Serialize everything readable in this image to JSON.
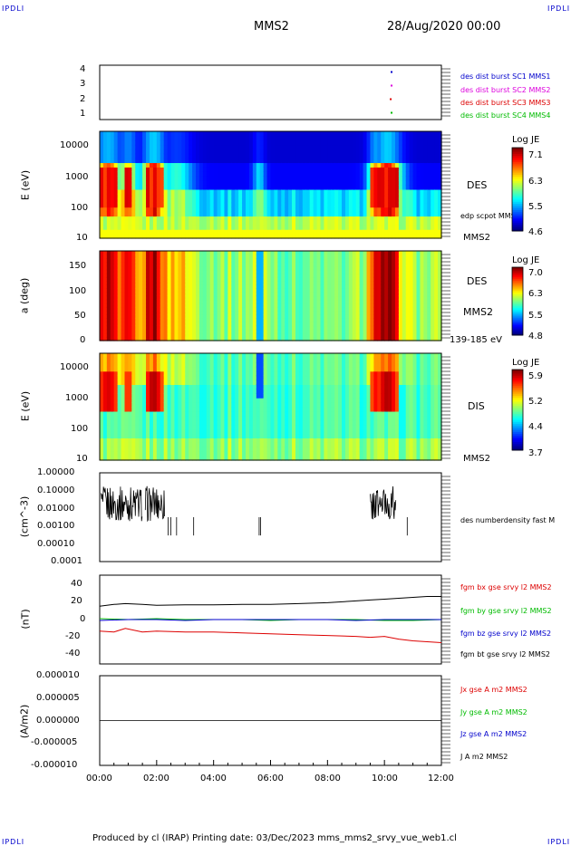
{
  "corners": {
    "tl": "IPDLI",
    "tr": "IPDLI",
    "bl": "IPDLI",
    "br": "IPDLI"
  },
  "header": {
    "spacecraft": "MMS2",
    "date": "28/Aug/2020 00:00"
  },
  "footer": {
    "text": "Produced by cl (IRAP)   Printing date: 03/Dec/2023   mms_mms2_srvy_vue_web1.cl"
  },
  "colors": {
    "blue": "#0000cc",
    "magenta": "#dd00dd",
    "red": "#dd0000",
    "green": "#00bb00",
    "black": "#000000"
  },
  "chart_data": [
    {
      "type": "scatter",
      "panel": "burst",
      "ylim": [
        0.5,
        4.5
      ],
      "yticks": [
        "1",
        "2",
        "3",
        "4"
      ],
      "legend": [
        {
          "label": "des dist burst SC1 MMS1",
          "color": "#0000cc"
        },
        {
          "label": "des dist burst SC2 MMS2",
          "color": "#dd00dd"
        },
        {
          "label": "des dist burst SC3 MMS3",
          "color": "#dd0000"
        },
        {
          "label": "des dist burst SC4 MMS4",
          "color": "#00bb00"
        }
      ],
      "series": [
        {
          "name": "des dist burst SC1 MMS1",
          "x": [
            10.25
          ],
          "y": [
            4
          ]
        },
        {
          "name": "des dist burst SC2 MMS2",
          "x": [
            10.25
          ],
          "y": [
            3
          ]
        },
        {
          "name": "des dist burst SC3 MMS3",
          "x": [
            10.22
          ],
          "y": [
            2
          ]
        },
        {
          "name": "des dist burst SC4 MMS4",
          "x": [
            10.25
          ],
          "y": [
            1
          ]
        }
      ]
    },
    {
      "type": "heatmap",
      "panel": "des-energy",
      "ylabel": "E (eV)",
      "yscale": "log",
      "ylim": [
        10,
        30000
      ],
      "yticks": [
        "10",
        "100",
        "1000",
        "10000"
      ],
      "label": "DES",
      "sublabel": "MMS2",
      "overlay": "edp scpot MMS2",
      "colorbar": {
        "title": "Log JE",
        "ticks": [
          "7.1",
          "6.3",
          "5.5",
          "4.6"
        ]
      }
    },
    {
      "type": "heatmap",
      "panel": "des-pitch",
      "ylabel": "a (deg)",
      "ylim": [
        0,
        180
      ],
      "yticks": [
        "0",
        "50",
        "100",
        "150"
      ],
      "label": "DES",
      "sublabel": "MMS2",
      "energy_range": "139-185 eV",
      "colorbar": {
        "title": "Log JE",
        "ticks": [
          "7.0",
          "6.3",
          "5.5",
          "4.8"
        ]
      }
    },
    {
      "type": "heatmap",
      "panel": "dis-energy",
      "ylabel": "E (eV)",
      "yscale": "log",
      "ylim": [
        10,
        30000
      ],
      "yticks": [
        "10",
        "100",
        "1000",
        "10000"
      ],
      "label": "DIS",
      "sublabel": "MMS2",
      "colorbar": {
        "title": "Log JE",
        "ticks": [
          "5.9",
          "5.2",
          "4.4",
          "3.7"
        ]
      }
    },
    {
      "type": "line",
      "panel": "density",
      "ylabel": "(cm^-3)",
      "yscale": "log",
      "ylim": [
        0.0001,
        1.0
      ],
      "yticks": [
        "0.00010",
        "0.00100",
        "0.01000",
        "0.10000",
        "1.00000"
      ],
      "yticks_ext": [
        "0.0001",
        "0.0010",
        "0.0100",
        "0.1000",
        "1.0000"
      ],
      "legend": [
        {
          "label": "des numberdensity fast M",
          "color": "#000000"
        }
      ]
    },
    {
      "type": "line",
      "panel": "fgm",
      "ylabel": "(nT)",
      "ylim": [
        -50,
        50
      ],
      "yticks": [
        "-40",
        "-20",
        "0",
        "20",
        "40"
      ],
      "legend": [
        {
          "label": "fgm bx gse srvy l2 MMS2",
          "color": "#dd0000"
        },
        {
          "label": "fgm by gse srvy l2 MMS2",
          "color": "#00bb00"
        },
        {
          "label": "fgm bz gse srvy l2 MMS2",
          "color": "#0000cc"
        },
        {
          "label": "fgm bt gse srvy l2 MMS2",
          "color": "#000000"
        }
      ],
      "series": [
        {
          "name": "fgm bt gse srvy l2 MMS2",
          "x": [
            0,
            0.5,
            0.9,
            1.5,
            2,
            3,
            4,
            5,
            6,
            7,
            8,
            9,
            9.5,
            10,
            10.5,
            11,
            11.5,
            12
          ],
          "y": [
            15,
            17,
            18,
            17,
            16,
            16.5,
            16.5,
            17,
            17,
            18,
            19,
            21,
            22,
            23,
            24,
            25,
            26,
            26
          ]
        },
        {
          "name": "fgm bx gse srvy l2 MMS2",
          "x": [
            0,
            0.5,
            0.9,
            1.5,
            2,
            3,
            4,
            5,
            6,
            7,
            8,
            9,
            9.5,
            10,
            10.5,
            11,
            11.5,
            12
          ],
          "y": [
            -13,
            -14,
            -10,
            -14,
            -13,
            -14,
            -14,
            -15,
            -16,
            -17,
            -18,
            -19,
            -20,
            -19,
            -22,
            -24,
            -25,
            -26
          ]
        },
        {
          "name": "fgm by gse srvy l2 MMS2",
          "x": [
            0,
            1,
            2,
            3,
            4,
            5,
            6,
            7,
            8,
            9,
            10,
            11,
            12
          ],
          "y": [
            1,
            0,
            1,
            0,
            0,
            0,
            -1,
            0,
            0,
            0,
            -1,
            -1,
            0
          ]
        },
        {
          "name": "fgm bz gse srvy l2 MMS2",
          "x": [
            0,
            1,
            2,
            3,
            4,
            5,
            6,
            7,
            8,
            9,
            10,
            11,
            12
          ],
          "y": [
            -1,
            0,
            0,
            -1,
            0,
            0,
            0,
            0,
            0,
            -1,
            0,
            0,
            0
          ]
        }
      ]
    },
    {
      "type": "line",
      "panel": "current",
      "ylabel": "(A/m2)",
      "ylim": [
        -1e-05,
        1e-05
      ],
      "yticks": [
        "-0.000010",
        "-0.000005",
        "0.000000",
        "0.000005",
        "0.000010"
      ],
      "legend": [
        {
          "label": "Jx gse A m2 MMS2",
          "color": "#dd0000"
        },
        {
          "label": "Jy gse A m2 MMS2",
          "color": "#00bb00"
        },
        {
          "label": "Jz gse A m2 MMS2",
          "color": "#0000cc"
        },
        {
          "label": "J A m2 MMS2",
          "color": "#000000"
        }
      ],
      "series": [
        {
          "name": "J A m2 MMS2",
          "x": [
            0,
            12
          ],
          "y": [
            0,
            0
          ]
        }
      ]
    }
  ],
  "xaxis": {
    "ticks": [
      "00:00",
      "02:00",
      "04:00",
      "06:00",
      "08:00",
      "10:00",
      "12:00"
    ],
    "xlim": [
      0,
      12
    ]
  }
}
